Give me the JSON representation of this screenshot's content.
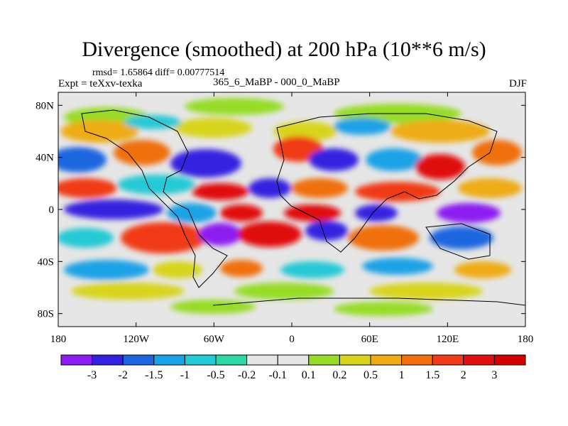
{
  "header": {
    "title": "Divergence (smoothed) at 200 hPa (10**6 m/s)",
    "stats": "rmsd= 1.65864 diff= 0.00777514",
    "expt": "Expt = teXxv-texka",
    "subtitle": "365_6_MaBP - 000_0_MaBP",
    "season": "DJF"
  },
  "map": {
    "y_ticks": [
      {
        "label": "80N",
        "lat": 80
      },
      {
        "label": "40N",
        "lat": 40
      },
      {
        "label": "0",
        "lat": 0
      },
      {
        "label": "40S",
        "lat": -40
      },
      {
        "label": "80S",
        "lat": -80
      }
    ],
    "x_ticks": [
      {
        "label": "180",
        "lon": -180
      },
      {
        "label": "120W",
        "lon": -120
      },
      {
        "label": "60W",
        "lon": -60
      },
      {
        "label": "0",
        "lon": 0
      },
      {
        "label": "60E",
        "lon": 60
      },
      {
        "label": "120E",
        "lon": 120
      },
      {
        "label": "180",
        "lon": 180
      }
    ],
    "lat_range": [
      -90,
      90
    ],
    "lon_range": [
      -180,
      180
    ]
  },
  "colorbar": {
    "levels": [
      "-3",
      "-2",
      "-1.5",
      "-1",
      "-0.5",
      "-0.2",
      "-0.1",
      "0.1",
      "0.2",
      "0.5",
      "1",
      "1.5",
      "2",
      "3"
    ],
    "colors": [
      "#8c1cf0",
      "#3420e0",
      "#1d66e0",
      "#1aa2e6",
      "#26c9d6",
      "#2fd6a6",
      "#e6e6e6",
      "#e6e6e6",
      "#96dc26",
      "#d8d41c",
      "#eeac12",
      "#f07010",
      "#f03a18",
      "#e01010",
      "#d20000"
    ]
  },
  "colors": {
    "land_outline": "#000000",
    "neutral": "#e6e6e6"
  }
}
